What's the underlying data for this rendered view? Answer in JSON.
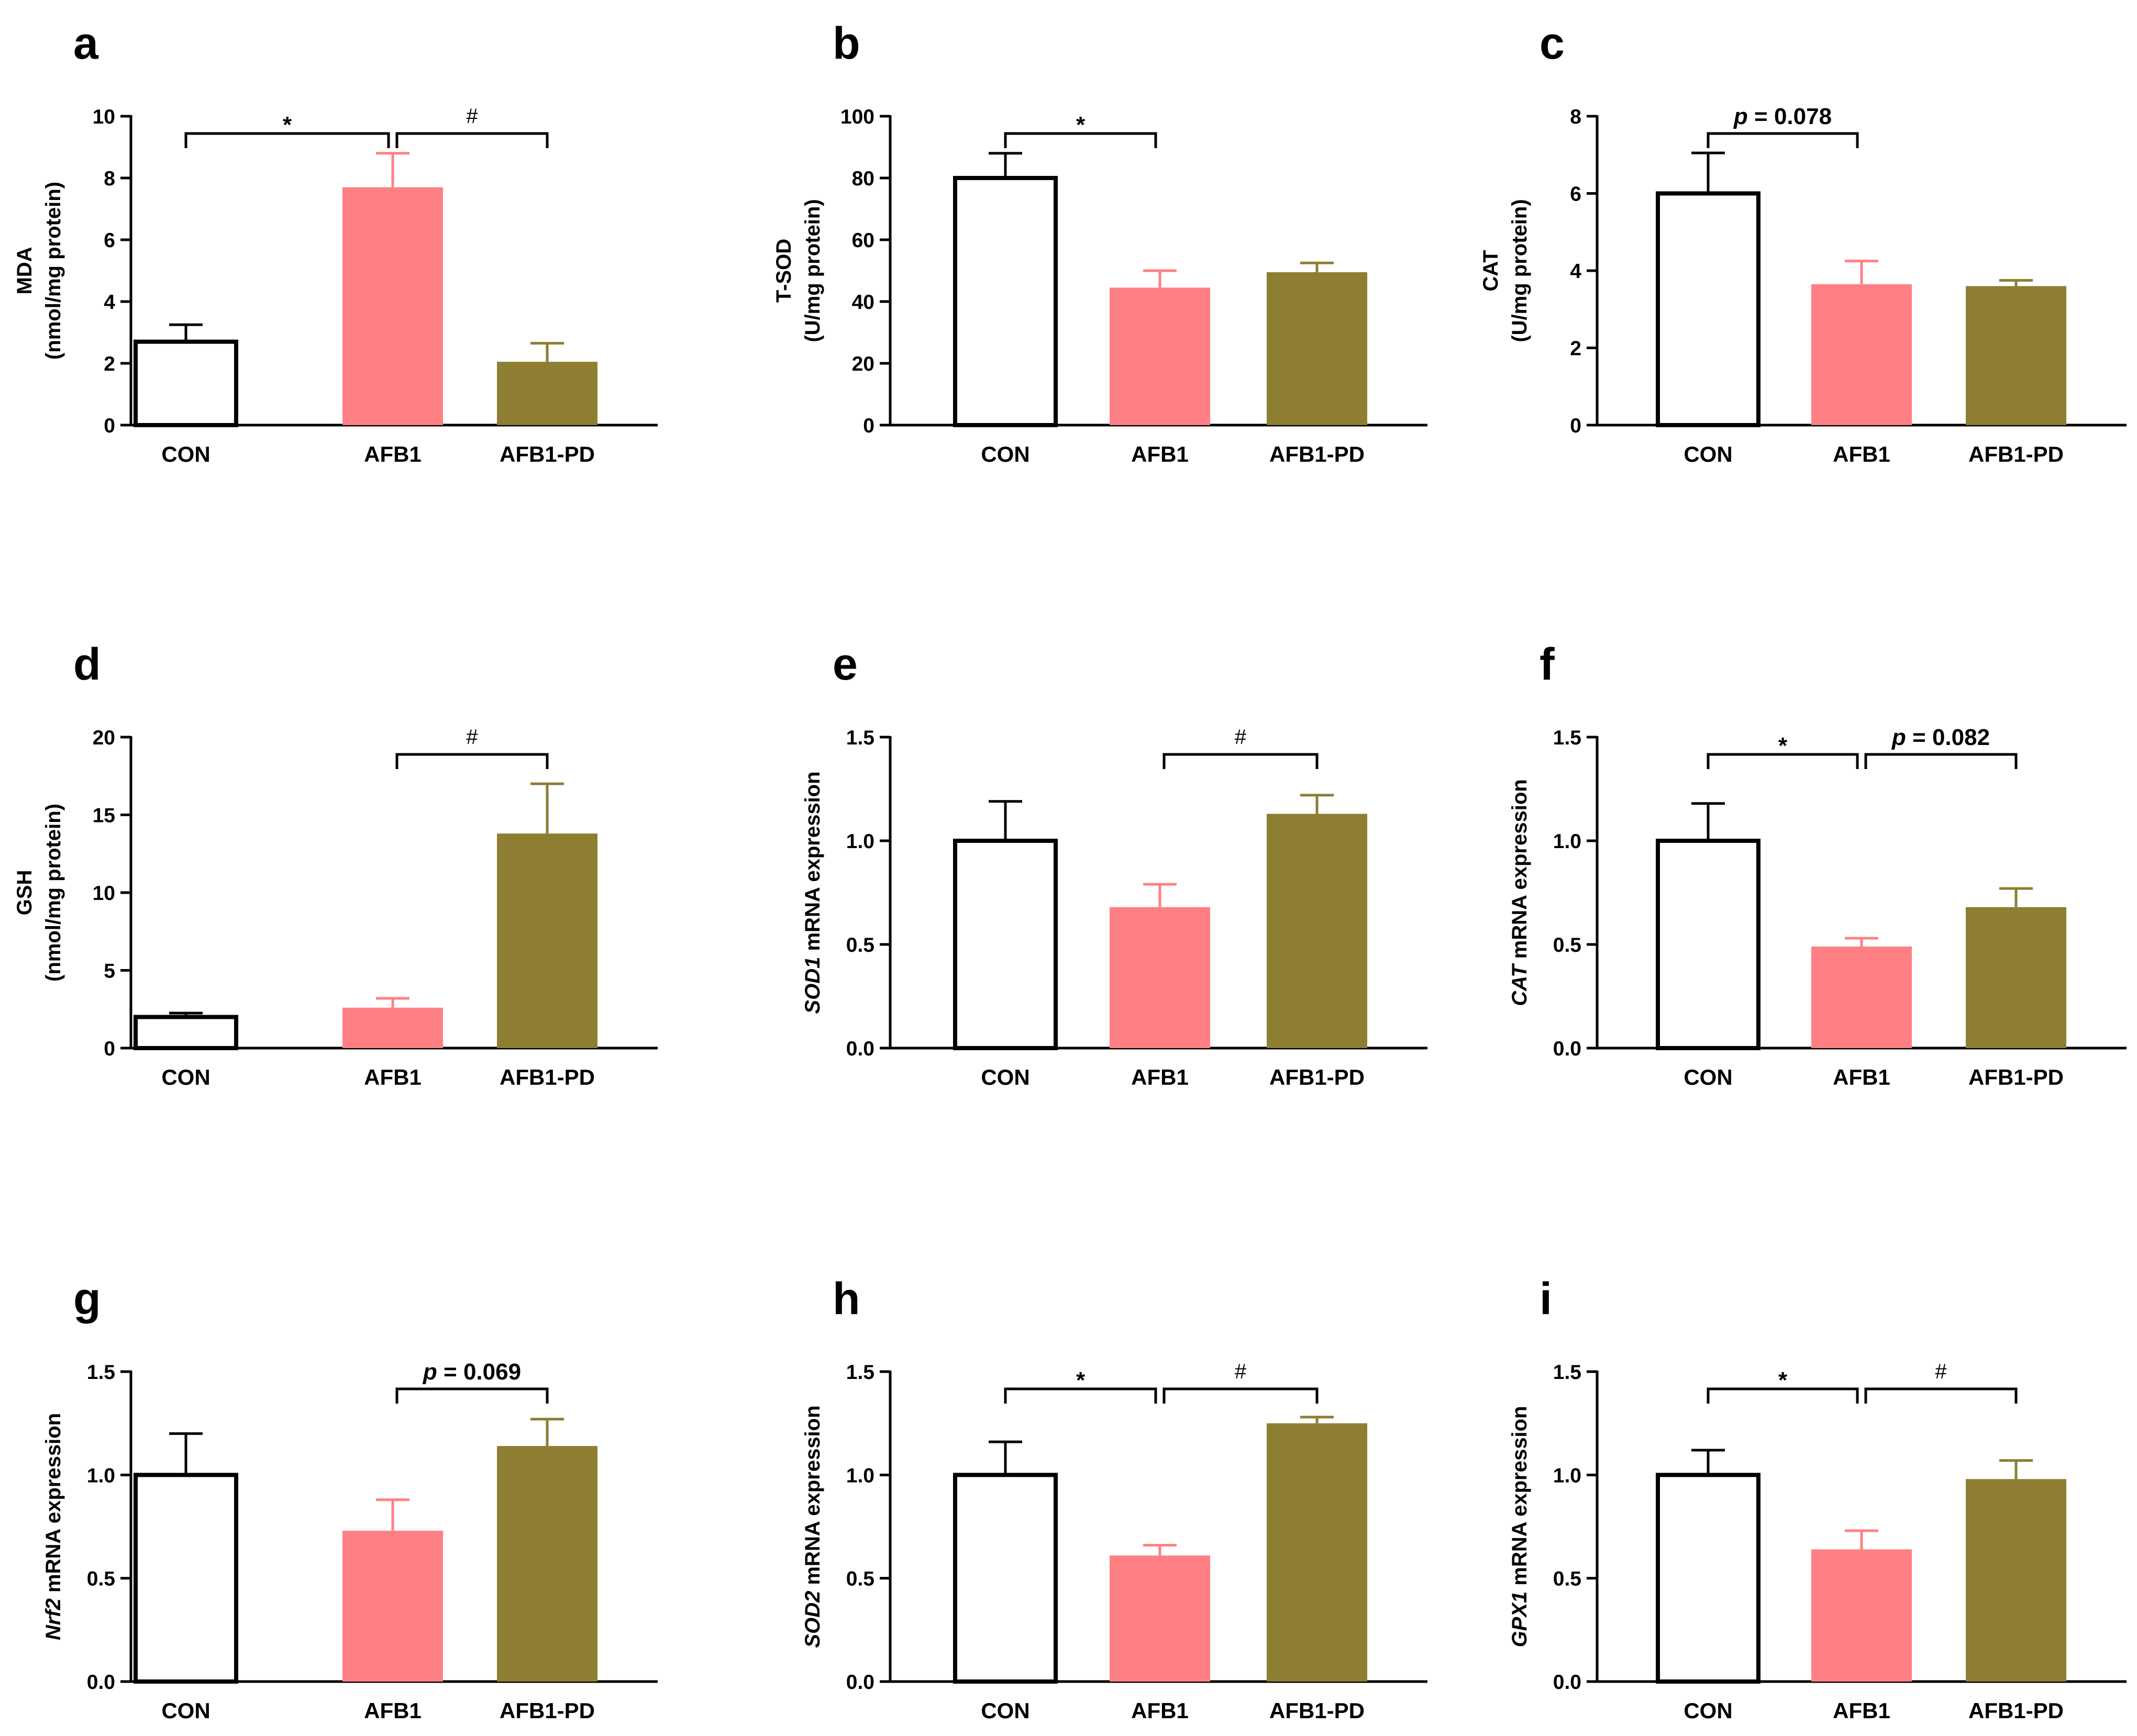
{
  "chart_data": [
    {
      "type": "bar",
      "panel": "a",
      "categories": [
        "CON",
        "AFB1",
        "AFB1-PD"
      ],
      "values": [
        2.7,
        7.7,
        2.05
      ],
      "errors": [
        0.55,
        1.1,
        0.6
      ],
      "ylabel": [
        "MDA",
        "(nmol/mg protein)"
      ],
      "ylim": [
        0,
        10
      ],
      "yticks": [
        "0",
        "2",
        "4",
        "6",
        "8",
        "10"
      ],
      "brackets": [
        {
          "from": 0,
          "to": 1,
          "label": "*"
        },
        {
          "from": 1,
          "to": 2,
          "label": "#"
        }
      ]
    },
    {
      "type": "bar",
      "panel": "b",
      "categories": [
        "CON",
        "AFB1",
        "AFB1-PD"
      ],
      "values": [
        80,
        44.5,
        49.5
      ],
      "errors": [
        8,
        5.5,
        3
      ],
      "ylabel": [
        "T-SOD",
        "(U/mg protein)"
      ],
      "ylim": [
        0,
        100
      ],
      "yticks": [
        "0",
        "20",
        "40",
        "60",
        "80",
        "100"
      ],
      "brackets": [
        {
          "from": 0,
          "to": 1,
          "label": "*"
        }
      ]
    },
    {
      "type": "bar",
      "panel": "c",
      "categories": [
        "CON",
        "AFB1",
        "AFB1-PD"
      ],
      "values": [
        6.0,
        3.65,
        3.6
      ],
      "errors": [
        1.05,
        0.6,
        0.15
      ],
      "ylabel": [
        "CAT",
        "(U/mg protein)"
      ],
      "ylim": [
        0,
        8
      ],
      "yticks": [
        "0",
        "2",
        "4",
        "6",
        "8"
      ],
      "brackets": [
        {
          "from": 0,
          "to": 1,
          "label": "p = 0.078"
        }
      ]
    },
    {
      "type": "bar",
      "panel": "d",
      "categories": [
        "CON",
        "AFB1",
        "AFB1-PD"
      ],
      "values": [
        2.0,
        2.6,
        13.8
      ],
      "errors": [
        0.25,
        0.6,
        3.2
      ],
      "ylabel": [
        "GSH",
        "(nmol/mg protein)"
      ],
      "ylim": [
        0,
        20
      ],
      "yticks": [
        "0",
        "5",
        "10",
        "15",
        "20"
      ],
      "brackets": [
        {
          "from": 1,
          "to": 2,
          "label": "#"
        }
      ]
    },
    {
      "type": "bar",
      "panel": "e",
      "categories": [
        "CON",
        "AFB1",
        "AFB1-PD"
      ],
      "values": [
        1.0,
        0.68,
        1.13
      ],
      "errors": [
        0.19,
        0.11,
        0.09
      ],
      "ylabel_gene": "SOD1",
      "ylabel_rest": " mRNA expression",
      "ylim": [
        0,
        1.5
      ],
      "yticks": [
        "0.0",
        "0.5",
        "1.0",
        "1.5"
      ],
      "brackets": [
        {
          "from": 1,
          "to": 2,
          "label": "#"
        }
      ]
    },
    {
      "type": "bar",
      "panel": "f",
      "categories": [
        "CON",
        "AFB1",
        "AFB1-PD"
      ],
      "values": [
        1.0,
        0.49,
        0.68
      ],
      "errors": [
        0.18,
        0.04,
        0.09
      ],
      "ylabel_gene": "CAT",
      "ylabel_rest": " mRNA expression",
      "ylim": [
        0,
        1.5
      ],
      "yticks": [
        "0.0",
        "0.5",
        "1.0",
        "1.5"
      ],
      "brackets": [
        {
          "from": 0,
          "to": 1,
          "label": "*"
        },
        {
          "from": 1,
          "to": 2,
          "label": "p = 0.082"
        }
      ]
    },
    {
      "type": "bar",
      "panel": "g",
      "categories": [
        "CON",
        "AFB1",
        "AFB1-PD"
      ],
      "values": [
        1.0,
        0.73,
        1.14
      ],
      "errors": [
        0.2,
        0.15,
        0.13
      ],
      "ylabel_gene": "Nrf2",
      "ylabel_rest": " mRNA expression",
      "ylim": [
        0,
        1.5
      ],
      "yticks": [
        "0.0",
        "0.5",
        "1.0",
        "1.5"
      ],
      "brackets": [
        {
          "from": 1,
          "to": 2,
          "label": "p = 0.069"
        }
      ]
    },
    {
      "type": "bar",
      "panel": "h",
      "categories": [
        "CON",
        "AFB1",
        "AFB1-PD"
      ],
      "values": [
        1.0,
        0.61,
        1.25
      ],
      "errors": [
        0.16,
        0.05,
        0.03
      ],
      "ylabel_gene": "SOD2",
      "ylabel_rest": " mRNA expression",
      "ylim": [
        0,
        1.5
      ],
      "yticks": [
        "0.0",
        "0.5",
        "1.0",
        "1.5"
      ],
      "brackets": [
        {
          "from": 0,
          "to": 1,
          "label": "*"
        },
        {
          "from": 1,
          "to": 2,
          "label": "#"
        }
      ]
    },
    {
      "type": "bar",
      "panel": "i",
      "categories": [
        "CON",
        "AFB1",
        "AFB1-PD"
      ],
      "values": [
        1.0,
        0.64,
        0.98
      ],
      "errors": [
        0.12,
        0.09,
        0.09
      ],
      "ylabel_gene": "GPX1",
      "ylabel_rest": " mRNA expression",
      "ylim": [
        0,
        1.5
      ],
      "yticks": [
        "0.0",
        "0.5",
        "1.0",
        "1.5"
      ],
      "brackets": [
        {
          "from": 0,
          "to": 1,
          "label": "*"
        },
        {
          "from": 1,
          "to": 2,
          "label": "#"
        }
      ]
    }
  ],
  "colors": {
    "con_fill": "#ffffff",
    "con_stroke": "#000000",
    "afb1_fill": "#ff8084",
    "afb1_pd_fill": "#8e7e32",
    "axis": "#000000"
  }
}
